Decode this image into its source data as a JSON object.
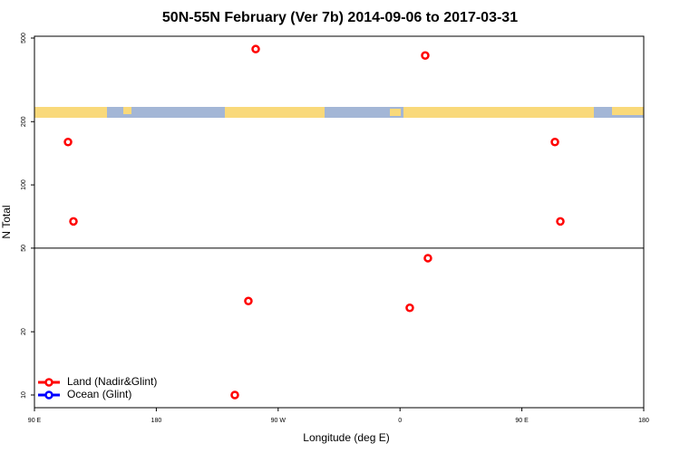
{
  "chart_data": {
    "type": "scatter",
    "title": "50N-55N February (Ver 7b)   2014-09-06 to 2017-03-31",
    "x_label": "Longitude (deg E)",
    "y_label": "N Total",
    "log_y": true,
    "xlim": [
      90,
      540
    ],
    "ylim": [
      8.7,
      510
    ],
    "xticks": [
      {
        "value": 90,
        "label": "90 E"
      },
      {
        "value": 180,
        "label": "180"
      },
      {
        "value": 270,
        "label": "90 W"
      },
      {
        "value": 360,
        "label": "0"
      },
      {
        "value": 450,
        "label": "90 E"
      },
      {
        "value": 540,
        "label": "180"
      }
    ],
    "yticks": [
      10,
      20,
      50,
      100,
      200,
      500
    ],
    "hline": 50,
    "legend": "bottom-left",
    "series": [
      {
        "name": "Land (Nadir&Glint)",
        "color": "#ff0000",
        "x": [
          114.8,
          118.8,
          253.4,
          248,
          238,
          378.6,
          380.6,
          367.2,
          474.4,
          478.4
        ],
        "values": [
          160,
          67,
          443,
          28,
          10,
          413,
          44.8,
          26,
          160,
          67
        ]
      },
      {
        "name": "Ocean (Glint)",
        "color": "#0000ff",
        "x": [],
        "values": []
      }
    ]
  }
}
